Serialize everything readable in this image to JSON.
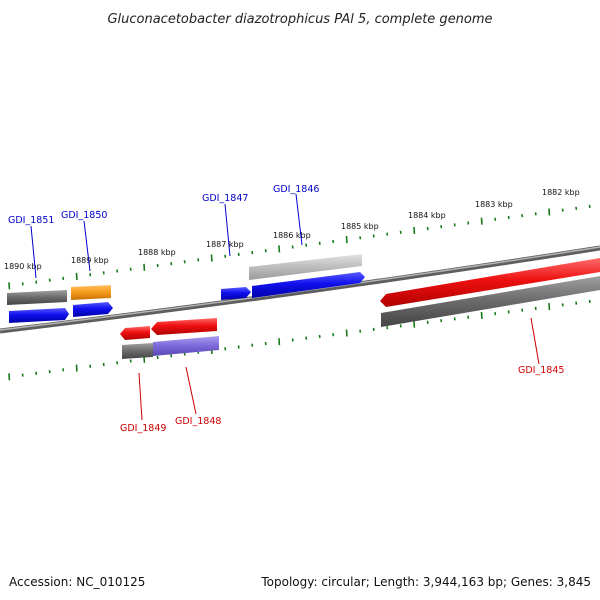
{
  "title": "Gluconacetobacter diazotrophicus PAl 5, complete genome",
  "footer": {
    "accession": "Accession: NC_010125",
    "topology": "Topology: circular; Length: 3,944,163 bp; Genes: 3,845"
  },
  "colors": {
    "forward_label": "#0000cc",
    "reverse_label": "#cc0000",
    "tick": "#1a7a1a",
    "backbone": "#7a7a7a"
  },
  "scale": {
    "ticks": [
      {
        "label": "1890 kbp",
        "kbp": 1890
      },
      {
        "label": "1889 kbp",
        "kbp": 1889
      },
      {
        "label": "1888 kbp",
        "kbp": 1888
      },
      {
        "label": "1887 kbp",
        "kbp": 1887
      },
      {
        "label": "1886 kbp",
        "kbp": 1886
      },
      {
        "label": "1885 kbp",
        "kbp": 1885
      },
      {
        "label": "1884 kbp",
        "kbp": 1884
      },
      {
        "label": "1883 kbp",
        "kbp": 1883
      },
      {
        "label": "1882 kbp",
        "kbp": 1882
      }
    ]
  },
  "genes": [
    {
      "name": "GDI_1851",
      "strand": "forward"
    },
    {
      "name": "GDI_1850",
      "strand": "forward"
    },
    {
      "name": "GDI_1847",
      "strand": "forward"
    },
    {
      "name": "GDI_1846",
      "strand": "forward"
    },
    {
      "name": "GDI_1849",
      "strand": "reverse"
    },
    {
      "name": "GDI_1848",
      "strand": "reverse"
    },
    {
      "name": "GDI_1845",
      "strand": "reverse"
    }
  ]
}
